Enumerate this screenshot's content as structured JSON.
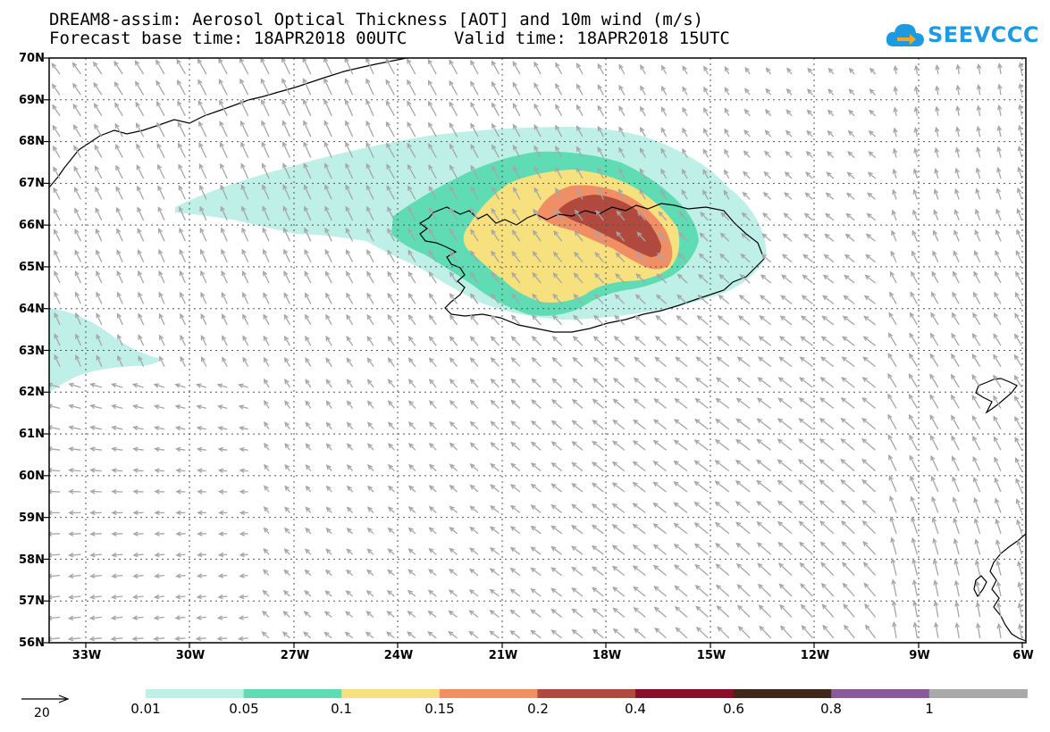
{
  "title_line1": "DREAM8-assim: Aerosol Optical Thickness [AOT] and 10m wind (m/s)",
  "forecast_base": "Forecast base time: 18APR2018 00UTC",
  "valid_time": "Valid time: 18APR2018 15UTC",
  "logo_text": "SEEVCCC",
  "latitudes": [
    "70N",
    "69N",
    "68N",
    "67N",
    "66N",
    "65N",
    "64N",
    "63N",
    "62N",
    "61N",
    "60N",
    "59N",
    "58N",
    "57N",
    "56N"
  ],
  "longitudes": [
    "33W",
    "30W",
    "27W",
    "24W",
    "21W",
    "18W",
    "15W",
    "12W",
    "9W",
    "6W"
  ],
  "colorbar": {
    "levels": [
      "0.01",
      "0.05",
      "0.1",
      "0.15",
      "0.2",
      "0.4",
      "0.6",
      "0.8",
      "1"
    ],
    "colors": [
      "#bff0e8",
      "#5fdcb4",
      "#f7e07e",
      "#f08f66",
      "#b04a3e",
      "#8a0e2a",
      "#3e2818",
      "#8b5a9a",
      "#a9a9a9"
    ]
  },
  "wind_reference": {
    "value": "20"
  },
  "colors": {
    "wind_arrow": "#a6a6a6",
    "coast": "#000000",
    "grid": "#555555",
    "logo": "#1e9be0"
  }
}
